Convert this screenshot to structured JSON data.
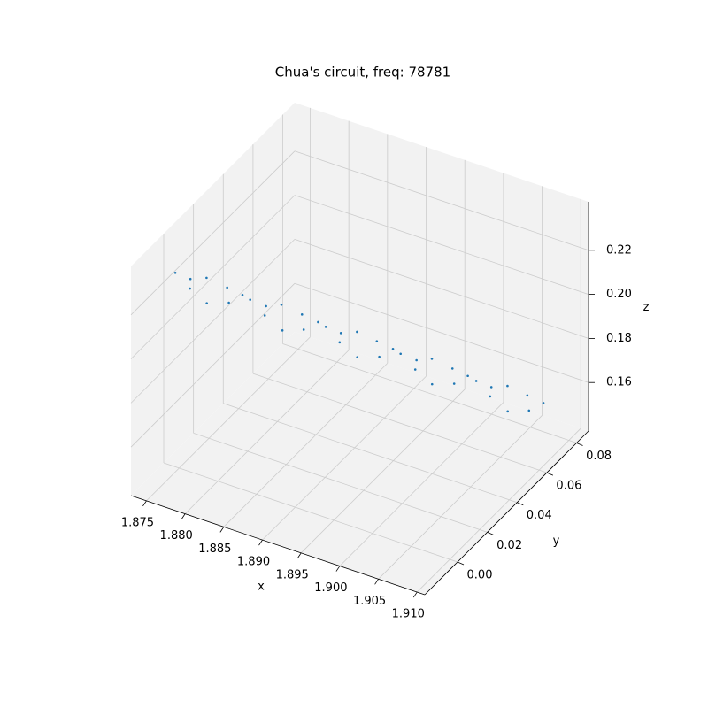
{
  "chart_data": {
    "type": "scatter3d",
    "title": "Chua's circuit, freq: 78781",
    "xlabel": "x",
    "ylabel": "y",
    "zlabel": "z",
    "xlim": [
      1.873,
      1.911
    ],
    "ylim": [
      -0.022,
      0.088
    ],
    "zlim": [
      0.138,
      0.242
    ],
    "xticks": [
      1.875,
      {
        "value": 1.88,
        "label": "1.880"
      },
      1.885,
      {
        "value": 1.89,
        "label": "1.890"
      },
      1.895,
      {
        "value": 1.9,
        "label": "1.900"
      },
      1.905,
      {
        "value": 1.91,
        "label": "1.910"
      }
    ],
    "yticks": [
      {
        "value": 0,
        "label": "0.00"
      },
      {
        "value": 0.02,
        "label": "0.02"
      },
      {
        "value": 0.04,
        "label": "0.04"
      },
      {
        "value": 0.06,
        "label": "0.06"
      },
      {
        "value": 0.08,
        "label": "0.08"
      }
    ],
    "zticks": [
      0.16,
      0.18,
      {
        "value": 0.2,
        "label": "0.20"
      },
      0.22
    ],
    "grid": true,
    "pane_color": "#f2f2f2",
    "series": [
      {
        "color": "#1f77b4",
        "x": [
          1.8745,
          1.8753,
          1.8762,
          1.877,
          1.8778,
          1.8787,
          1.8795,
          1.8803,
          1.8811,
          1.882,
          1.8828,
          1.8836,
          1.8845,
          1.8853,
          1.8861,
          1.887,
          1.8878,
          1.8886,
          1.8894,
          1.8903,
          1.8911,
          1.8919,
          1.8928,
          1.8936,
          1.8944,
          1.8953,
          1.8961,
          1.8969,
          1.8977,
          1.8986,
          1.8994,
          1.9002,
          1.9011,
          1.9019,
          1.9027,
          1.9036,
          1.9044,
          1.9052,
          1.906,
          1.9069
        ],
        "y": [
          0,
          0.006,
          0.001,
          0.008,
          0.004,
          0.013,
          0.01,
          0.015,
          0.016,
          0.022,
          0.017,
          0.024,
          0.02,
          0.029,
          0.026,
          0.031,
          0.032,
          0.038,
          0.033,
          0.04,
          0.036,
          0.045,
          0.042,
          0.047,
          0.048,
          0.054,
          0.049,
          0.056,
          0.052,
          0.061,
          0.058,
          0.063,
          0.064,
          0.07,
          0.065,
          0.072,
          0.068,
          0.077,
          0.074,
          0.079
        ],
        "z": [
          0.226,
          0.2201,
          0.2202,
          0.2213,
          0.2134,
          0.2155,
          0.2116,
          0.2127,
          0.2108,
          0.2049,
          0.205,
          0.2061,
          0.1982,
          0.2003,
          0.1964,
          0.1975,
          0.1956,
          0.1897,
          0.1898,
          0.1909,
          0.183,
          0.1851,
          0.1812,
          0.1823,
          0.1804,
          0.1745,
          0.1746,
          0.1757,
          0.1678,
          0.1699,
          0.166,
          0.1671,
          0.1652,
          0.1593,
          0.1594,
          0.1605,
          0.1526,
          0.1547,
          0.1508,
          0.1519
        ]
      }
    ]
  }
}
